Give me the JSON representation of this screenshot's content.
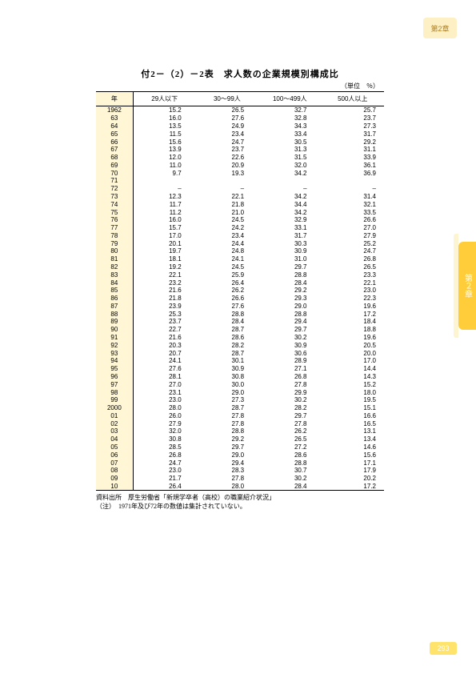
{
  "chapter_tag": "第2章",
  "side_tab": "第２章",
  "page_number": "293",
  "title": "付2－（2）－2表　求人数の企業規模別構成比",
  "unit": "（単位　％）",
  "columns": [
    "年",
    "29人以下",
    "30～99人",
    "100～499人",
    "500人以上"
  ],
  "rows": [
    [
      "1962",
      "15.2",
      "26.5",
      "32.7",
      "25.7"
    ],
    [
      "63",
      "16.0",
      "27.6",
      "32.8",
      "23.7"
    ],
    [
      "64",
      "13.5",
      "24.9",
      "34.3",
      "27.3"
    ],
    [
      "65",
      "11.5",
      "23.4",
      "33.4",
      "31.7"
    ],
    [
      "66",
      "15.6",
      "24.7",
      "30.5",
      "29.2"
    ],
    [
      "67",
      "13.9",
      "23.7",
      "31.3",
      "31.1"
    ],
    [
      "68",
      "12.0",
      "22.6",
      "31.5",
      "33.9"
    ],
    [
      "69",
      "11.0",
      "20.9",
      "32.0",
      "36.1"
    ],
    [
      "70",
      "9.7",
      "19.3",
      "34.2",
      "36.9"
    ],
    [
      "71",
      "",
      "",
      "",
      ""
    ],
    [
      "72",
      "–",
      "–",
      "–",
      "–"
    ],
    [
      "73",
      "12.3",
      "22.1",
      "34.2",
      "31.4"
    ],
    [
      "74",
      "11.7",
      "21.8",
      "34.4",
      "32.1"
    ],
    [
      "75",
      "11.2",
      "21.0",
      "34.2",
      "33.5"
    ],
    [
      "76",
      "16.0",
      "24.5",
      "32.9",
      "26.6"
    ],
    [
      "77",
      "15.7",
      "24.2",
      "33.1",
      "27.0"
    ],
    [
      "78",
      "17.0",
      "23.4",
      "31.7",
      "27.9"
    ],
    [
      "79",
      "20.1",
      "24.4",
      "30.3",
      "25.2"
    ],
    [
      "80",
      "19.7",
      "24.8",
      "30.9",
      "24.7"
    ],
    [
      "81",
      "18.1",
      "24.1",
      "31.0",
      "26.8"
    ],
    [
      "82",
      "19.2",
      "24.5",
      "29.7",
      "26.5"
    ],
    [
      "83",
      "22.1",
      "25.9",
      "28.8",
      "23.3"
    ],
    [
      "84",
      "23.2",
      "26.4",
      "28.4",
      "22.1"
    ],
    [
      "85",
      "21.6",
      "26.2",
      "29.2",
      "23.0"
    ],
    [
      "86",
      "21.8",
      "26.6",
      "29.3",
      "22.3"
    ],
    [
      "87",
      "23.9",
      "27.6",
      "29.0",
      "19.6"
    ],
    [
      "88",
      "25.3",
      "28.8",
      "28.8",
      "17.2"
    ],
    [
      "89",
      "23.7",
      "28.4",
      "29.4",
      "18.4"
    ],
    [
      "90",
      "22.7",
      "28.7",
      "29.7",
      "18.8"
    ],
    [
      "91",
      "21.6",
      "28.6",
      "30.2",
      "19.6"
    ],
    [
      "92",
      "20.3",
      "28.2",
      "30.9",
      "20.5"
    ],
    [
      "93",
      "20.7",
      "28.7",
      "30.6",
      "20.0"
    ],
    [
      "94",
      "24.1",
      "30.1",
      "28.9",
      "17.0"
    ],
    [
      "95",
      "27.6",
      "30.9",
      "27.1",
      "14.4"
    ],
    [
      "96",
      "28.1",
      "30.8",
      "26.8",
      "14.3"
    ],
    [
      "97",
      "27.0",
      "30.0",
      "27.8",
      "15.2"
    ],
    [
      "98",
      "23.1",
      "29.0",
      "29.9",
      "18.0"
    ],
    [
      "99",
      "23.0",
      "27.3",
      "30.2",
      "19.5"
    ],
    [
      "2000",
      "28.0",
      "28.7",
      "28.2",
      "15.1"
    ],
    [
      "01",
      "26.0",
      "27.8",
      "29.7",
      "16.6"
    ],
    [
      "02",
      "27.9",
      "27.8",
      "27.8",
      "16.5"
    ],
    [
      "03",
      "32.0",
      "28.8",
      "26.2",
      "13.1"
    ],
    [
      "04",
      "30.8",
      "29.2",
      "26.5",
      "13.4"
    ],
    [
      "05",
      "28.5",
      "29.7",
      "27.2",
      "14.6"
    ],
    [
      "06",
      "26.8",
      "29.0",
      "28.6",
      "15.6"
    ],
    [
      "07",
      "24.7",
      "29.4",
      "28.8",
      "17.1"
    ],
    [
      "08",
      "23.0",
      "28.3",
      "30.7",
      "17.9"
    ],
    [
      "09",
      "21.7",
      "27.8",
      "30.2",
      "20.2"
    ],
    [
      "10",
      "26.4",
      "28.0",
      "28.4",
      "17.2"
    ]
  ],
  "note1": "資料出所　厚生労働省「新規学卒者（高校）の職業紹介状況」",
  "note2": "（注）　1971年及び72年の数値は集計されていない。"
}
